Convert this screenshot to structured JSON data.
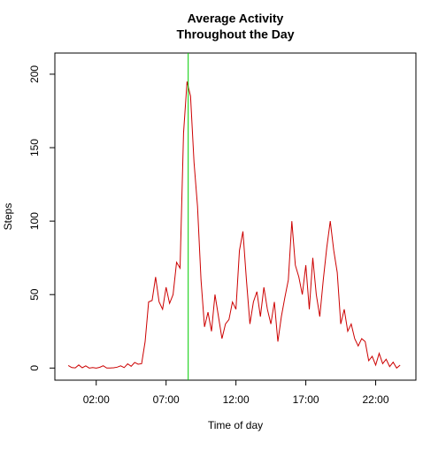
{
  "chart_data": {
    "type": "line",
    "title": [
      "Average Activity",
      "Throughout the Day"
    ],
    "x_label": "Time of day",
    "y_label": "Steps",
    "xlim": [
      -0.96,
      24.88
    ],
    "ylim": [
      -8.24,
      214.4
    ],
    "xticks": [
      {
        "value": 2,
        "label": "02:00"
      },
      {
        "value": 7,
        "label": "07:00"
      },
      {
        "value": 12,
        "label": "12:00"
      },
      {
        "value": 17,
        "label": "17:00"
      },
      {
        "value": 22,
        "label": "22:00"
      }
    ],
    "yticks": [
      0,
      50,
      100,
      150,
      200
    ],
    "vline": {
      "x": 8.5833,
      "color": "#00cc00"
    },
    "series": [
      {
        "name": "Steps",
        "color": "#cc0000",
        "x": [
          0,
          0.25,
          0.5,
          0.75,
          1,
          1.25,
          1.5,
          1.75,
          2,
          2.25,
          2.5,
          2.75,
          3,
          3.25,
          3.5,
          3.75,
          4,
          4.25,
          4.5,
          4.75,
          5,
          5.25,
          5.5,
          5.75,
          6,
          6.25,
          6.5,
          6.75,
          7,
          7.25,
          7.5,
          7.75,
          8,
          8.25,
          8.5,
          8.75,
          9,
          9.25,
          9.5,
          9.75,
          10,
          10.25,
          10.5,
          10.75,
          11,
          11.25,
          11.5,
          11.75,
          12,
          12.25,
          12.5,
          12.75,
          13,
          13.25,
          13.5,
          13.75,
          14,
          14.25,
          14.5,
          14.75,
          15,
          15.25,
          15.5,
          15.75,
          16,
          16.25,
          16.5,
          16.75,
          17,
          17.25,
          17.5,
          17.75,
          18,
          18.25,
          18.5,
          18.75,
          19,
          19.25,
          19.5,
          19.75,
          20,
          20.25,
          20.5,
          20.75,
          21,
          21.25,
          21.5,
          21.75,
          22,
          22.25,
          22.5,
          22.75,
          23,
          23.25,
          23.5,
          23.75
        ],
        "values": [
          1.7,
          0.3,
          0.1,
          2.1,
          0.2,
          1.5,
          0,
          0.3,
          0,
          0.5,
          1.6,
          0,
          0,
          0.2,
          0.6,
          1.5,
          0.3,
          2.9,
          1.2,
          3.8,
          2.6,
          3.0,
          18,
          45,
          46,
          62,
          45,
          40,
          55,
          44,
          50,
          72,
          68,
          160,
          195,
          185,
          140,
          110,
          60,
          28,
          38,
          25,
          50,
          35,
          20,
          30,
          33,
          45,
          40,
          80,
          93,
          60,
          30,
          45,
          52,
          35,
          55,
          40,
          30,
          45,
          18,
          35,
          48,
          60,
          100,
          70,
          62,
          50,
          70,
          40,
          75,
          50,
          35,
          60,
          82,
          100,
          80,
          65,
          30,
          40,
          25,
          30,
          20,
          15,
          20,
          18,
          5,
          8,
          2,
          10,
          3,
          6,
          1,
          4,
          0,
          2
        ]
      }
    ]
  }
}
